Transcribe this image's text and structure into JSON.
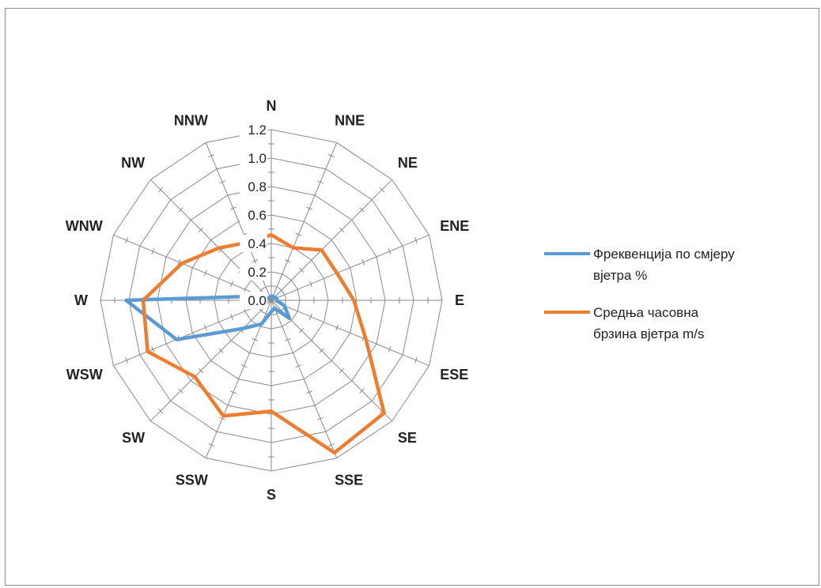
{
  "chart_data": {
    "type": "radar",
    "categories": [
      "N",
      "NNE",
      "NE",
      "ENE",
      "E",
      "ESE",
      "SE",
      "SSE",
      "S",
      "SSW",
      "SW",
      "WSW",
      "W",
      "WNW",
      "NW",
      "NNW"
    ],
    "radial_ticks": [
      "0.0",
      "0.2",
      "0.4",
      "0.6",
      "0.8",
      "1.0",
      "1.2"
    ],
    "rlim": [
      0,
      1.2
    ],
    "minor_step": 0.1,
    "grid": true,
    "legend_position": "right",
    "series": [
      {
        "name": "Фреквенција по смјеру вјетра %",
        "color": "#5b9bd5",
        "values": [
          0.03,
          0.03,
          0.03,
          0.04,
          0.04,
          0.1,
          0.18,
          0.06,
          0.08,
          0.18,
          0.28,
          0.72,
          1.02,
          0.08,
          0.02,
          0.02
        ]
      },
      {
        "name": "Средња часовна брзина вјетра m/s",
        "color": "#ed7d31",
        "values": [
          0.46,
          0.4,
          0.5,
          0.5,
          0.58,
          0.72,
          1.12,
          1.16,
          0.78,
          0.88,
          0.76,
          0.94,
          0.9,
          0.68,
          0.52,
          0.44
        ]
      }
    ]
  },
  "legend": [
    {
      "label": "Фреквенција по смјеру\nвјетра %",
      "color": "#5b9bd5"
    },
    {
      "label": " Средња часовна\nбрзина вјетра m/s",
      "color": "#ed7d31"
    }
  ]
}
